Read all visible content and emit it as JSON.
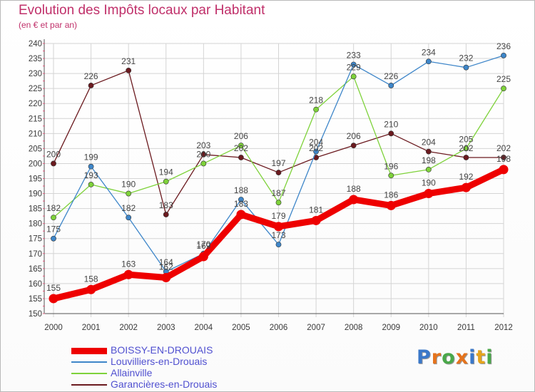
{
  "title": "Evolution des Impôts locaux par Habitant",
  "subtitle": "(en € et par an)",
  "logo": {
    "text": "Proxiti",
    "letters": [
      "P",
      "r",
      "o",
      "x",
      "i",
      "t",
      "i"
    ],
    "colors": [
      "#3a78c9",
      "#e5731c",
      "#4aa84a",
      "#e5731c",
      "#3a78c9",
      "#e5a41c",
      "#4aa84a"
    ]
  },
  "chart_data": {
    "type": "line",
    "title": "Evolution des Impôts locaux par Habitant",
    "subtitle": "(en € et par an)",
    "xlabel": "",
    "ylabel": "",
    "x": [
      2000,
      2001,
      2002,
      2003,
      2004,
      2005,
      2006,
      2007,
      2008,
      2009,
      2010,
      2011,
      2012
    ],
    "ylim": [
      150,
      240
    ],
    "yticks": [
      150,
      155,
      160,
      165,
      170,
      175,
      180,
      185,
      190,
      195,
      200,
      205,
      210,
      215,
      220,
      225,
      230,
      235,
      240
    ],
    "grid": true,
    "legend": "bottom-left",
    "series": [
      {
        "name": "Garancières-en-Drouais",
        "color": "#6b1a1f",
        "values": [
          200,
          226,
          231,
          183,
          203,
          202,
          197,
          202,
          206,
          210,
          204,
          202,
          202
        ]
      },
      {
        "name": "Allainville",
        "color": "#7ed23a",
        "values": [
          182,
          193,
          190,
          194,
          200,
          206,
          187,
          218,
          229,
          196,
          198,
          205,
          225
        ]
      },
      {
        "name": "Louvilliers-en-Drouais",
        "color": "#3e86c9",
        "values": [
          175,
          199,
          182,
          164,
          170,
          188,
          173,
          204,
          233,
          226,
          234,
          232,
          236
        ]
      },
      {
        "name": "BOISSY-EN-DROUAIS",
        "color": "#ee0000",
        "values": [
          155,
          158,
          163,
          162,
          169,
          183,
          179,
          181,
          188,
          186,
          190,
          192,
          198
        ]
      }
    ],
    "legend_order": [
      "BOISSY-EN-DROUAIS",
      "Louvilliers-en-Drouais",
      "Allainville",
      "Garancières-en-Drouais"
    ]
  }
}
